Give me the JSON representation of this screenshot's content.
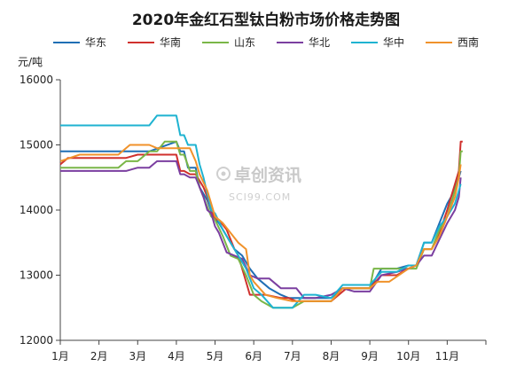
{
  "chart_data": {
    "type": "line",
    "title": "2020年金红石型钛白粉市场价格走势图",
    "ylabel": "元/吨",
    "xlabel": "",
    "ylim": [
      12000,
      16000
    ],
    "yticks": [
      "12000",
      "13000",
      "14000",
      "15000",
      "16000"
    ],
    "categories": [
      "1月",
      "2月",
      "3月",
      "4月",
      "5月",
      "6月",
      "7月",
      "8月",
      "9月",
      "10月",
      "11月"
    ],
    "grid": false,
    "legend_position": "top",
    "series": [
      {
        "name": "华东",
        "color": "#1f6fb5",
        "points": [
          [
            0.0,
            14900
          ],
          [
            2.0,
            14900
          ],
          [
            2.3,
            14900
          ],
          [
            3.0,
            15050
          ],
          [
            3.1,
            14900
          ],
          [
            3.2,
            14900
          ],
          [
            3.3,
            14650
          ],
          [
            3.5,
            14650
          ],
          [
            3.6,
            14350
          ],
          [
            3.8,
            14150
          ],
          [
            3.95,
            13900
          ],
          [
            4.1,
            13800
          ],
          [
            4.3,
            13600
          ],
          [
            4.5,
            13400
          ],
          [
            4.7,
            13300
          ],
          [
            4.9,
            13100
          ],
          [
            5.1,
            12950
          ],
          [
            5.4,
            12800
          ],
          [
            5.7,
            12700
          ],
          [
            5.9,
            12650
          ],
          [
            6.1,
            12650
          ],
          [
            6.3,
            12650
          ],
          [
            6.5,
            12650
          ],
          [
            7.0,
            12650
          ],
          [
            7.3,
            12800
          ],
          [
            7.6,
            12800
          ],
          [
            8.0,
            12800
          ],
          [
            8.3,
            13100
          ],
          [
            8.7,
            13100
          ],
          [
            9.0,
            13150
          ],
          [
            9.2,
            13150
          ],
          [
            9.4,
            13500
          ],
          [
            9.6,
            13500
          ],
          [
            9.8,
            13800
          ],
          [
            10.0,
            14100
          ],
          [
            10.1,
            14200
          ],
          [
            10.2,
            14350
          ],
          [
            10.3,
            14500
          ],
          [
            10.35,
            14600
          ]
        ]
      },
      {
        "name": "华南",
        "color": "#d0312d",
        "points": [
          [
            0.0,
            14700
          ],
          [
            0.2,
            14800
          ],
          [
            1.0,
            14800
          ],
          [
            1.7,
            14800
          ],
          [
            2.0,
            14850
          ],
          [
            2.3,
            14850
          ],
          [
            3.0,
            14850
          ],
          [
            3.1,
            14600
          ],
          [
            3.2,
            14600
          ],
          [
            3.35,
            14550
          ],
          [
            3.5,
            14550
          ],
          [
            3.7,
            14350
          ],
          [
            3.8,
            14200
          ],
          [
            3.9,
            14000
          ],
          [
            4.0,
            13850
          ],
          [
            4.1,
            13850
          ],
          [
            4.3,
            13700
          ],
          [
            4.5,
            13400
          ],
          [
            4.6,
            13300
          ],
          [
            4.8,
            12900
          ],
          [
            4.9,
            12700
          ],
          [
            5.3,
            12700
          ],
          [
            5.7,
            12650
          ],
          [
            5.9,
            12650
          ],
          [
            6.1,
            12600
          ],
          [
            6.6,
            12600
          ],
          [
            7.0,
            12600
          ],
          [
            7.4,
            12800
          ],
          [
            7.6,
            12800
          ],
          [
            8.0,
            12800
          ],
          [
            8.3,
            13000
          ],
          [
            8.7,
            13000
          ],
          [
            9.0,
            13100
          ],
          [
            9.2,
            13150
          ],
          [
            9.4,
            13400
          ],
          [
            9.6,
            13400
          ],
          [
            9.8,
            13650
          ],
          [
            10.0,
            14000
          ],
          [
            10.1,
            14200
          ],
          [
            10.2,
            14400
          ],
          [
            10.3,
            14600
          ],
          [
            10.35,
            15050
          ],
          [
            10.4,
            15050
          ]
        ]
      },
      {
        "name": "山东",
        "color": "#7ab648",
        "points": [
          [
            0.0,
            14650
          ],
          [
            1.0,
            14650
          ],
          [
            1.5,
            14650
          ],
          [
            1.7,
            14750
          ],
          [
            2.0,
            14750
          ],
          [
            2.3,
            14900
          ],
          [
            2.5,
            14900
          ],
          [
            2.7,
            15050
          ],
          [
            3.0,
            15050
          ],
          [
            3.1,
            14850
          ],
          [
            3.2,
            14850
          ],
          [
            3.35,
            14600
          ],
          [
            3.5,
            14600
          ],
          [
            3.6,
            14350
          ],
          [
            3.8,
            14050
          ],
          [
            3.9,
            13900
          ],
          [
            4.0,
            13850
          ],
          [
            4.2,
            13600
          ],
          [
            4.4,
            13300
          ],
          [
            4.6,
            13250
          ],
          [
            4.8,
            13000
          ],
          [
            5.0,
            12700
          ],
          [
            5.2,
            12600
          ],
          [
            5.5,
            12500
          ],
          [
            6.0,
            12500
          ],
          [
            6.3,
            12600
          ],
          [
            6.6,
            12600
          ],
          [
            7.0,
            12600
          ],
          [
            7.3,
            12800
          ],
          [
            7.5,
            12800
          ],
          [
            8.0,
            12800
          ],
          [
            8.1,
            13100
          ],
          [
            8.5,
            13100
          ],
          [
            9.0,
            13100
          ],
          [
            9.2,
            13100
          ],
          [
            9.4,
            13400
          ],
          [
            9.6,
            13400
          ],
          [
            9.8,
            13700
          ],
          [
            10.0,
            13900
          ],
          [
            10.1,
            14100
          ],
          [
            10.2,
            14300
          ],
          [
            10.3,
            14500
          ],
          [
            10.35,
            14900
          ],
          [
            10.4,
            14900
          ]
        ]
      },
      {
        "name": "华北",
        "color": "#7b3fa0",
        "points": [
          [
            0.0,
            14600
          ],
          [
            1.0,
            14600
          ],
          [
            1.7,
            14600
          ],
          [
            2.0,
            14650
          ],
          [
            2.3,
            14650
          ],
          [
            2.5,
            14750
          ],
          [
            3.0,
            14750
          ],
          [
            3.1,
            14550
          ],
          [
            3.2,
            14550
          ],
          [
            3.35,
            14500
          ],
          [
            3.5,
            14500
          ],
          [
            3.6,
            14350
          ],
          [
            3.7,
            14200
          ],
          [
            3.8,
            14000
          ],
          [
            3.9,
            13950
          ],
          [
            4.0,
            13750
          ],
          [
            4.1,
            13650
          ],
          [
            4.3,
            13350
          ],
          [
            4.5,
            13300
          ],
          [
            4.7,
            13250
          ],
          [
            4.9,
            13000
          ],
          [
            5.1,
            12950
          ],
          [
            5.4,
            12950
          ],
          [
            5.7,
            12800
          ],
          [
            6.1,
            12800
          ],
          [
            6.3,
            12650
          ],
          [
            6.6,
            12650
          ],
          [
            7.0,
            12700
          ],
          [
            7.3,
            12800
          ],
          [
            7.6,
            12750
          ],
          [
            8.0,
            12750
          ],
          [
            8.3,
            13000
          ],
          [
            8.7,
            13050
          ],
          [
            9.0,
            13100
          ],
          [
            9.2,
            13150
          ],
          [
            9.4,
            13300
          ],
          [
            9.6,
            13300
          ],
          [
            9.8,
            13550
          ],
          [
            10.0,
            13800
          ],
          [
            10.2,
            14000
          ],
          [
            10.3,
            14200
          ],
          [
            10.35,
            14500
          ]
        ]
      },
      {
        "name": "华中",
        "color": "#1fb3d1",
        "points": [
          [
            0.0,
            15300
          ],
          [
            1.0,
            15300
          ],
          [
            2.0,
            15300
          ],
          [
            2.3,
            15300
          ],
          [
            2.5,
            15450
          ],
          [
            3.0,
            15450
          ],
          [
            3.1,
            15150
          ],
          [
            3.2,
            15150
          ],
          [
            3.3,
            15000
          ],
          [
            3.5,
            15000
          ],
          [
            3.6,
            14700
          ],
          [
            3.7,
            14500
          ],
          [
            3.8,
            14250
          ],
          [
            3.9,
            14000
          ],
          [
            4.0,
            13950
          ],
          [
            4.2,
            13700
          ],
          [
            4.4,
            13500
          ],
          [
            4.6,
            13300
          ],
          [
            4.8,
            13100
          ],
          [
            5.0,
            12800
          ],
          [
            5.2,
            12700
          ],
          [
            5.5,
            12500
          ],
          [
            6.0,
            12500
          ],
          [
            6.3,
            12700
          ],
          [
            6.6,
            12700
          ],
          [
            7.0,
            12650
          ],
          [
            7.3,
            12850
          ],
          [
            7.6,
            12850
          ],
          [
            8.0,
            12850
          ],
          [
            8.3,
            13050
          ],
          [
            8.7,
            13050
          ],
          [
            9.0,
            13150
          ],
          [
            9.2,
            13150
          ],
          [
            9.4,
            13500
          ],
          [
            9.6,
            13500
          ],
          [
            9.8,
            13750
          ],
          [
            10.0,
            13900
          ],
          [
            10.2,
            14100
          ],
          [
            10.3,
            14300
          ],
          [
            10.35,
            14400
          ]
        ]
      },
      {
        "name": "西南",
        "color": "#f0922b",
        "points": [
          [
            0.0,
            14750
          ],
          [
            0.5,
            14850
          ],
          [
            1.0,
            14850
          ],
          [
            1.5,
            14850
          ],
          [
            1.8,
            15000
          ],
          [
            2.0,
            15000
          ],
          [
            2.3,
            15000
          ],
          [
            2.5,
            14950
          ],
          [
            3.0,
            14950
          ],
          [
            3.1,
            14950
          ],
          [
            3.2,
            14950
          ],
          [
            3.35,
            14950
          ],
          [
            3.5,
            14750
          ],
          [
            3.6,
            14550
          ],
          [
            3.8,
            14300
          ],
          [
            3.9,
            14100
          ],
          [
            4.0,
            13900
          ],
          [
            4.2,
            13800
          ],
          [
            4.4,
            13650
          ],
          [
            4.6,
            13500
          ],
          [
            4.8,
            13400
          ],
          [
            4.9,
            13000
          ],
          [
            5.0,
            12900
          ],
          [
            5.3,
            12700
          ],
          [
            5.6,
            12650
          ],
          [
            6.0,
            12600
          ],
          [
            6.3,
            12600
          ],
          [
            6.6,
            12600
          ],
          [
            7.0,
            12600
          ],
          [
            7.3,
            12800
          ],
          [
            7.6,
            12800
          ],
          [
            8.0,
            12800
          ],
          [
            8.2,
            12900
          ],
          [
            8.5,
            12900
          ],
          [
            9.0,
            13100
          ],
          [
            9.2,
            13150
          ],
          [
            9.4,
            13400
          ],
          [
            9.6,
            13400
          ],
          [
            9.8,
            13600
          ],
          [
            10.0,
            13900
          ],
          [
            10.2,
            14200
          ],
          [
            10.3,
            14500
          ],
          [
            10.35,
            14700
          ]
        ]
      }
    ]
  },
  "watermark": {
    "text": "卓创资讯",
    "subtext": "SCI99.COM"
  }
}
